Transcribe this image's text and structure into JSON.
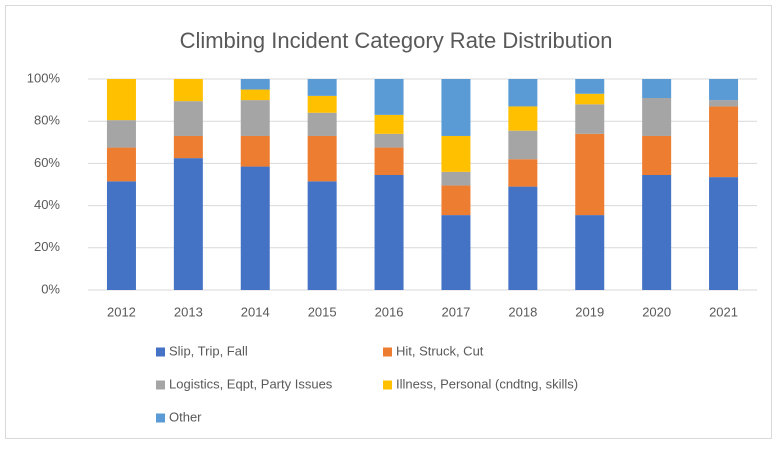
{
  "chart_data": {
    "type": "stacked_bar_100",
    "title": "Climbing Incident Category Rate Distribution",
    "categories": [
      "2012",
      "2013",
      "2014",
      "2015",
      "2016",
      "2017",
      "2018",
      "2019",
      "2020",
      "2021"
    ],
    "series": [
      {
        "name": "Slip, Trip, Fall",
        "color": "#4472c4",
        "values": [
          51.5,
          62.5,
          58.5,
          51.5,
          54.5,
          35.5,
          49,
          35.5,
          54.5,
          53.5
        ]
      },
      {
        "name": "Hit, Struck, Cut",
        "color": "#ed7d31",
        "values": [
          16,
          10.5,
          14.5,
          21.5,
          13,
          14,
          13,
          38.5,
          18.5,
          33.5
        ]
      },
      {
        "name": "Logistics, Eqpt, Party Issues",
        "color": "#a5a5a5",
        "values": [
          13,
          16.5,
          17,
          11,
          6.5,
          6.5,
          13.5,
          14,
          18,
          3
        ]
      },
      {
        "name": "Illness, Personal (cndtng, skills)",
        "color": "#ffc000",
        "values": [
          19.5,
          10.5,
          5,
          8,
          9,
          17,
          11.5,
          5,
          0,
          0
        ]
      },
      {
        "name": "Other",
        "color": "#5b9bd5",
        "values": [
          0,
          0,
          5,
          8,
          17,
          27,
          13,
          7,
          9,
          10
        ]
      }
    ],
    "ylim": [
      0,
      100
    ],
    "yticks": [
      {
        "value": 0,
        "label": "0%"
      },
      {
        "value": 20,
        "label": "20%"
      },
      {
        "value": 40,
        "label": "40%"
      },
      {
        "value": 60,
        "label": "60%"
      },
      {
        "value": 80,
        "label": "80%"
      },
      {
        "value": 100,
        "label": "100%"
      }
    ],
    "grid": true,
    "legend": "bottom"
  }
}
